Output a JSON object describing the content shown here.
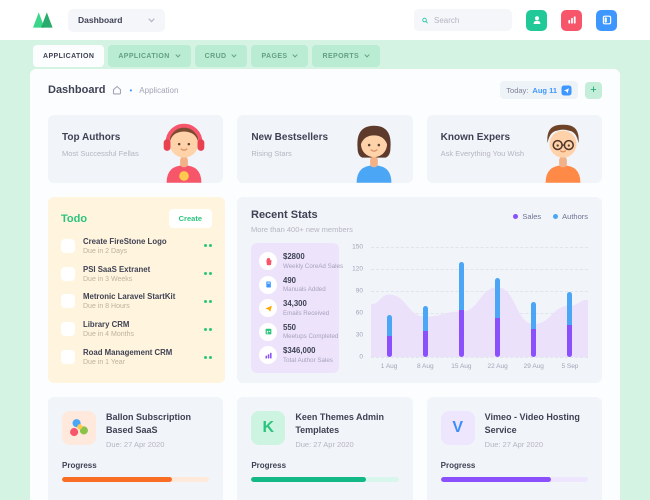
{
  "header": {
    "menu_label": "Dashboard",
    "search_placeholder": "Search",
    "buttons": [
      {
        "icon": "user-icon",
        "color": "#20c997"
      },
      {
        "icon": "bar-chart-icon",
        "color": "#f6556a"
      },
      {
        "icon": "layout-panel-icon",
        "color": "#3e97ff"
      }
    ]
  },
  "tabs": [
    {
      "label": "APPLICATION",
      "active": true,
      "dropdown": false
    },
    {
      "label": "APPLICATION",
      "active": false,
      "dropdown": true
    },
    {
      "label": "CRUD",
      "active": false,
      "dropdown": true
    },
    {
      "label": "PAGES",
      "active": false,
      "dropdown": true
    },
    {
      "label": "REPORTS",
      "active": false,
      "dropdown": true
    }
  ],
  "breadcrumb": {
    "title": "Dashboard",
    "separator": "•",
    "section": "Application"
  },
  "toolbar": {
    "today_label": "Today:",
    "today_date": "Aug 11",
    "add_label": "+"
  },
  "feature_cards": [
    {
      "title": "Top Authors",
      "subtitle": "Most Successful Fellas",
      "avatar": "boy-headphones-avatar"
    },
    {
      "title": "New Bestsellers",
      "subtitle": "Rising Stars",
      "avatar": "girl-avatar"
    },
    {
      "title": "Known Expers",
      "subtitle": "Ask Everything You Wish",
      "avatar": "boy-glasses-avatar"
    }
  ],
  "todo": {
    "title": "Todo",
    "create_label": "Create",
    "items": [
      {
        "title": "Create FireStone Logo",
        "due": "Due in 2 Days"
      },
      {
        "title": "PSI SaaS Extranet",
        "due": "Due in 3 Weeks"
      },
      {
        "title": "Metronic Laravel StartKit",
        "due": "Due in 8 Hours"
      },
      {
        "title": "Library CRM",
        "due": "Due in 4 Months"
      },
      {
        "title": "Road Management CRM",
        "due": "Due in 1 Year"
      }
    ]
  },
  "recent_stats": {
    "title": "Recent Stats",
    "subtitle": "More than 400+ new members",
    "legend": [
      {
        "label": "Sales",
        "color": "#8950fc"
      },
      {
        "label": "Authors",
        "color": "#4ba7f5"
      }
    ],
    "stats": [
      {
        "value": "$2800",
        "label": "Weekly CoreAd Sales",
        "icon": "cart-icon",
        "color": "#f6556a"
      },
      {
        "value": "490",
        "label": "Manuals Added",
        "icon": "book-icon",
        "color": "#3e97ff"
      },
      {
        "value": "34,300",
        "label": "Emails Received",
        "icon": "send-icon",
        "color": "#ffa800"
      },
      {
        "value": "550",
        "label": "Meetups Completed",
        "icon": "calendar-icon",
        "color": "#2bc47d"
      },
      {
        "value": "$346,000",
        "label": "Total Author Sales",
        "icon": "bar-chart-icon",
        "color": "#8950fc"
      }
    ]
  },
  "chart_data": {
    "type": "bar",
    "stacked": true,
    "categories": [
      "1 Aug",
      "8 Aug",
      "15 Aug",
      "22 Aug",
      "29 Aug",
      "5 Sep"
    ],
    "series": [
      {
        "name": "Sales",
        "color": "#8950fc",
        "values": [
          28,
          35,
          64,
          53,
          38,
          44
        ]
      },
      {
        "name": "Authors",
        "color": "#4ba7f5",
        "values": [
          29,
          35,
          65,
          55,
          37,
          44
        ]
      }
    ],
    "area": {
      "name": "trend-background",
      "color": "#ebdffa",
      "values": [
        85,
        55,
        62,
        95,
        45,
        70
      ],
      "edge_values": [
        72,
        78
      ]
    },
    "ylim": [
      0,
      150
    ],
    "yticks": [
      150,
      120,
      90,
      60,
      30,
      0
    ],
    "grid": "dashed-horizontal",
    "legend_position": "top-right"
  },
  "project_cards": [
    {
      "title": "Ballon Subscription Based SaaS",
      "due": "Due: 27 Apr 2020",
      "progress_label": "Progress",
      "progress_percent": 75,
      "bar_color": "#f96d24",
      "track_color": "#ffe9db",
      "tile_bg": "#ffe9dc",
      "icon": "color-dots-flower-icon",
      "icon_letter": ""
    },
    {
      "title": "Keen Themes Admin Templates",
      "due": "Due: 27 Apr 2020",
      "progress_label": "Progress",
      "progress_percent": 78,
      "bar_color": "#12b886",
      "track_color": "#d9f6ec",
      "tile_bg": "#cdf3e1",
      "icon": "letter-k-icon",
      "icon_letter": "K",
      "tile_fg": "#2bc47d"
    },
    {
      "title": "Vimeo - Video Hosting Service",
      "due": "Due: 27 Apr 2020",
      "progress_label": "Progress",
      "progress_percent": 75,
      "bar_color": "#8950fc",
      "track_color": "#eee5ff",
      "tile_bg": "#eee6fd",
      "icon": "letter-v-icon",
      "icon_letter": "V",
      "tile_fg": "#3e8dff"
    }
  ]
}
